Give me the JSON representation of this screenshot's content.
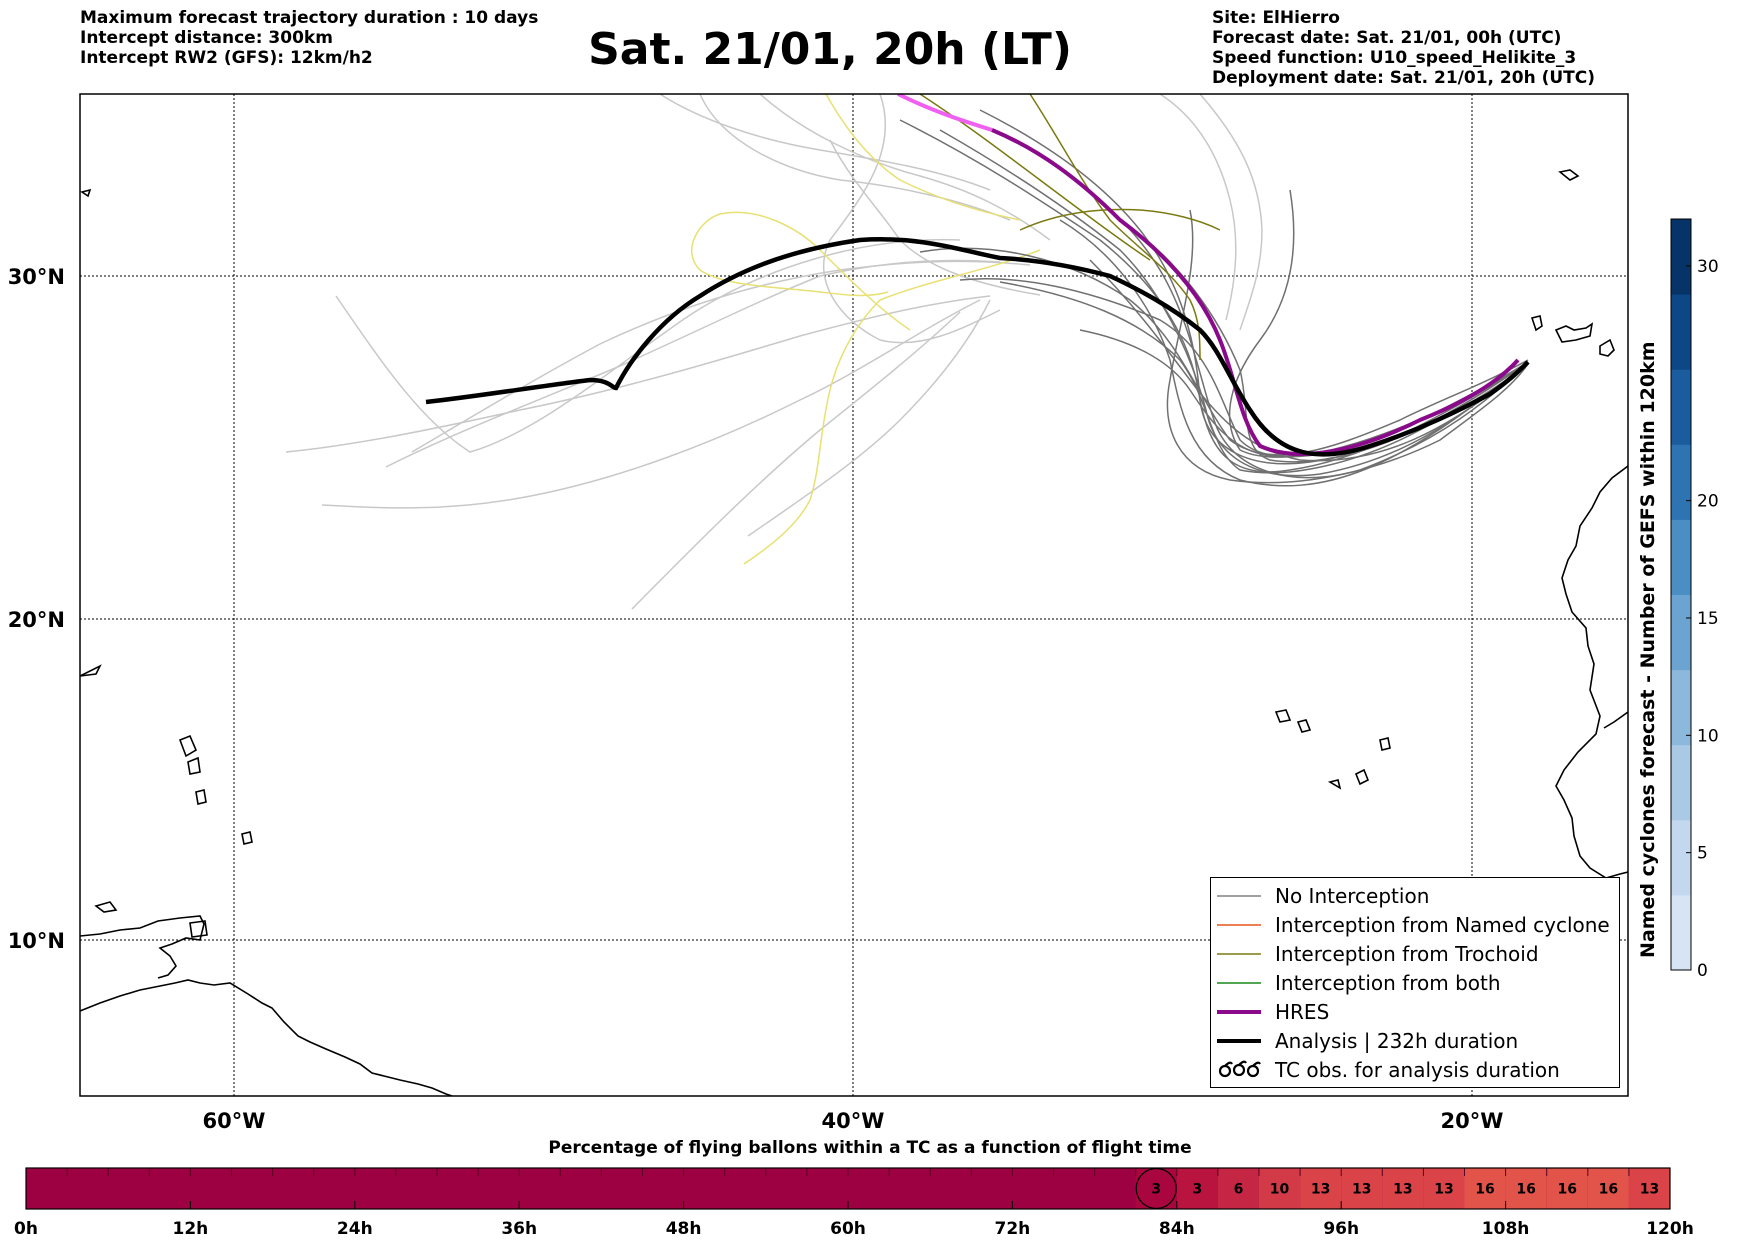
{
  "header": {
    "left_lines": [
      "Maximum forecast trajectory duration : 10 days",
      "Intercept distance: 300km",
      "Intercept RW2 (GFS):  12km/h2"
    ],
    "title": "Sat. 21/01, 20h (LT)",
    "right_lines": [
      "Site: ElHierro",
      "Forecast date: Sat. 21/01, 00h (UTC)",
      "Speed function: U10_speed_Helikite_3",
      "Deployment date: Sat. 21/01, 20h (UTC)"
    ]
  },
  "map": {
    "lat_labels": [
      "30°N",
      "20°N",
      "10°N"
    ],
    "lon_labels": [
      "60°W",
      "40°W",
      "20°W"
    ],
    "lat_range": [
      5,
      35
    ],
    "lon_range": [
      -65,
      -15
    ]
  },
  "legend": {
    "items": [
      {
        "label": "No Interception",
        "color": "#808080",
        "style": "thin"
      },
      {
        "label": "Interception from Named cyclone",
        "color": "#e8541e",
        "style": "thin"
      },
      {
        "label": "Interception from Trochoid",
        "color": "#7a7a10",
        "style": "thin"
      },
      {
        "label": "Interception from both",
        "color": "#1a8a1a",
        "style": "thin"
      },
      {
        "label": "HRES",
        "color": "#8b0a8b",
        "style": "thick"
      },
      {
        "label": "Analysis | 232h duration",
        "color": "#000000",
        "style": "thick"
      },
      {
        "label": "TC obs. for analysis duration",
        "color": "#000000",
        "style": "symbol",
        "icon": "cyclone-symbols-icon"
      }
    ]
  },
  "colorbar": {
    "label": "Named cyclones forecast - Number of GEFS within 120km",
    "ticks": [
      0,
      5,
      10,
      15,
      20,
      30
    ],
    "range": [
      0,
      32
    ],
    "colors": [
      "#d6e4f4",
      "#c3d8ee",
      "#a9c9e5",
      "#8cb8dc",
      "#6ba4d1",
      "#4a8ec4",
      "#2e74b3",
      "#1a5c9e",
      "#0d4785",
      "#073468"
    ]
  },
  "time_bar": {
    "title": "Percentage of flying ballons within a TC as a function of flight time",
    "tick_labels": [
      "0h",
      "12h",
      "24h",
      "36h",
      "48h",
      "60h",
      "72h",
      "84h",
      "96h",
      "108h",
      "120h"
    ],
    "base_color": "#9e0142",
    "cells": [
      {
        "value": "3",
        "color": "#a9053f",
        "circled": true
      },
      {
        "value": "3",
        "color": "#b8143f"
      },
      {
        "value": "6",
        "color": "#c42644"
      },
      {
        "value": "10",
        "color": "#d23a48"
      },
      {
        "value": "13",
        "color": "#da4448"
      },
      {
        "value": "13",
        "color": "#da4448"
      },
      {
        "value": "13",
        "color": "#da4448"
      },
      {
        "value": "13",
        "color": "#da4448"
      },
      {
        "value": "16",
        "color": "#e2534a"
      },
      {
        "value": "16",
        "color": "#e2534a"
      },
      {
        "value": "16",
        "color": "#e2534a"
      },
      {
        "value": "16",
        "color": "#e2534a"
      },
      {
        "value": "13",
        "color": "#da4448"
      }
    ]
  },
  "colors": {
    "analysis": "#000000",
    "hres": "#8b0a8b",
    "hres_early": "#f060f0",
    "ensemble": "#707070",
    "ensemble_light": "#c8c8c8",
    "trochoid": "#7a7a10",
    "trochoid_light": "#e8e070"
  }
}
